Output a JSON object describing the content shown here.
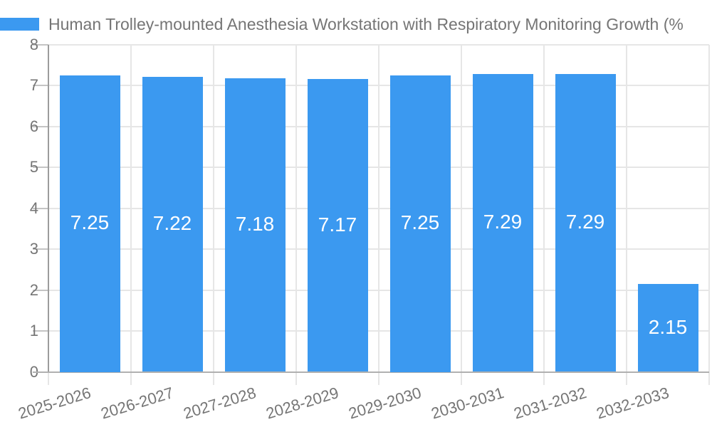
{
  "chart_data": {
    "type": "bar",
    "title": "Human Trolley-mounted Anesthesia Workstation with Respiratory Monitoring Growth (%",
    "categories": [
      "2025-2026",
      "2026-2027",
      "2027-2028",
      "2028-2029",
      "2029-2030",
      "2030-2031",
      "2031-2032",
      "2032-2033"
    ],
    "values": [
      7.25,
      7.22,
      7.18,
      7.17,
      7.25,
      7.29,
      7.29,
      2.15
    ],
    "value_labels": [
      "7.25",
      "7.22",
      "7.18",
      "7.17",
      "7.25",
      "7.29",
      "7.29",
      "2.15"
    ],
    "xlabel": "",
    "ylabel": "",
    "ylim": [
      0,
      8
    ],
    "yticks": [
      0,
      1,
      2,
      3,
      4,
      5,
      6,
      7,
      8
    ],
    "grid": true,
    "legend_position": "top-left",
    "colors": {
      "bar": "#3b99f0",
      "bar_label": "#ffffff",
      "text": "#757575",
      "grid": "#e6e6e6",
      "axis": "#b0b0b0",
      "axis_dark": "#9c9c9c",
      "tick": "#c4c4c4"
    }
  }
}
